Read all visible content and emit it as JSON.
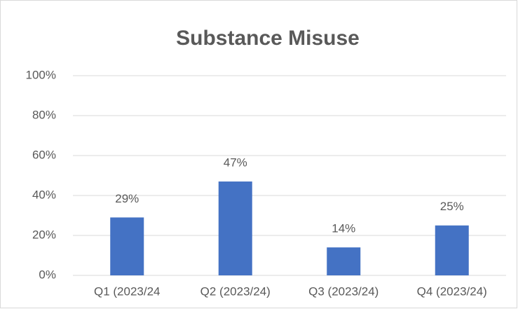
{
  "chart_data": {
    "type": "bar",
    "title": "Substance Misuse",
    "categories": [
      "Q1 (2023/24",
      "Q2 (2023/24)",
      "Q3 (2023/24)",
      "Q4 (2023/24)"
    ],
    "values": [
      29,
      47,
      14,
      25
    ],
    "value_labels": [
      "29%",
      "47%",
      "14%",
      "25%"
    ],
    "color": "#4472c4",
    "ylim": [
      0,
      100
    ],
    "yticks": [
      {
        "value": 0,
        "label": "0%"
      },
      {
        "value": 20,
        "label": "20%"
      },
      {
        "value": 40,
        "label": "40%"
      },
      {
        "value": 60,
        "label": "60%"
      },
      {
        "value": 80,
        "label": "80%"
      },
      {
        "value": 100,
        "label": "100%"
      }
    ],
    "grid": true
  }
}
